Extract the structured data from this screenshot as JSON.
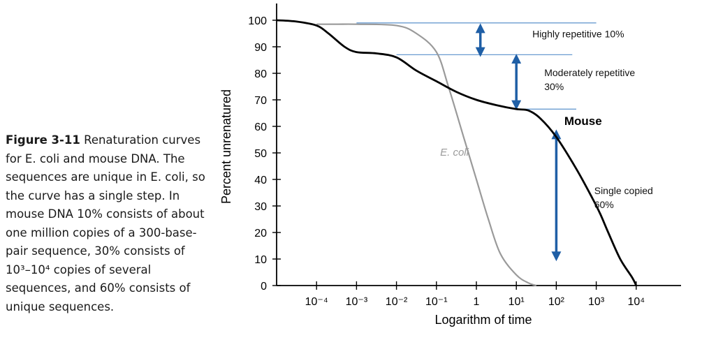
{
  "caption": {
    "label": "Figure 3-11",
    "text": " Renaturation curves for E. coli and mouse DNA. The sequences are unique in E. coli, so the curve has a single step. In mouse DNA 10% consists of about one million copies of a 300-base-pair sequence, 30% consists of 10³–10⁴ copies of several sequences, and 60% consists of unique sequences."
  },
  "chart_data": {
    "type": "line",
    "xlabel": "Logarithm of time",
    "ylabel": "Percent unrenatured",
    "x_scale": "log",
    "x_ticks": [
      "10⁻⁴",
      "10⁻³",
      "10⁻²",
      "10⁻¹",
      "1",
      "10¹",
      "10²",
      "10³",
      "10⁴"
    ],
    "y_ticks": [
      "0",
      "10",
      "20",
      "30",
      "40",
      "50",
      "60",
      "70",
      "80",
      "90",
      "100"
    ],
    "ylim": [
      0,
      100
    ],
    "xlim_log10": [
      -5,
      5.9
    ],
    "series": [
      {
        "name": "Mouse",
        "color": "#000000",
        "points": [
          [
            -5,
            100
          ],
          [
            -4.5,
            99.5
          ],
          [
            -4.0,
            98
          ],
          [
            -3.7,
            95
          ],
          [
            -3.3,
            90
          ],
          [
            -3.0,
            88
          ],
          [
            -2.5,
            87.5
          ],
          [
            -2.0,
            86
          ],
          [
            -1.5,
            81
          ],
          [
            -1.0,
            77
          ],
          [
            -0.5,
            73
          ],
          [
            0,
            70
          ],
          [
            0.5,
            68
          ],
          [
            1.0,
            66.5
          ],
          [
            1.3,
            66
          ],
          [
            1.6,
            63
          ],
          [
            2.0,
            56
          ],
          [
            2.5,
            44
          ],
          [
            2.9,
            33
          ],
          [
            3.1,
            27
          ],
          [
            3.3,
            20
          ],
          [
            3.6,
            10
          ],
          [
            3.9,
            3
          ],
          [
            4.0,
            0
          ]
        ]
      },
      {
        "name": "E. coli",
        "color": "#9a9a9a",
        "points": [
          [
            -4,
            98.5
          ],
          [
            -3.5,
            98.5
          ],
          [
            -3,
            98.5
          ],
          [
            -2,
            98
          ],
          [
            -1.5,
            95
          ],
          [
            -1.0,
            88
          ],
          [
            -0.7,
            75
          ],
          [
            -0.3,
            55
          ],
          [
            0,
            40
          ],
          [
            0.3,
            25
          ],
          [
            0.6,
            12
          ],
          [
            1.0,
            4
          ],
          [
            1.3,
            1
          ],
          [
            1.5,
            0
          ]
        ]
      }
    ],
    "annotations": [
      {
        "id": "highly",
        "lines": [
          "Highly repetitive 10%"
        ]
      },
      {
        "id": "moderately",
        "lines": [
          "Moderately repetitive",
          "30%"
        ]
      },
      {
        "id": "single",
        "lines": [
          "Single copied",
          "60%"
        ]
      }
    ],
    "reference_levels": [
      99,
      87,
      66.5
    ],
    "arrow_color": "#1f5fa6",
    "line_color": "#6a9bd1"
  }
}
